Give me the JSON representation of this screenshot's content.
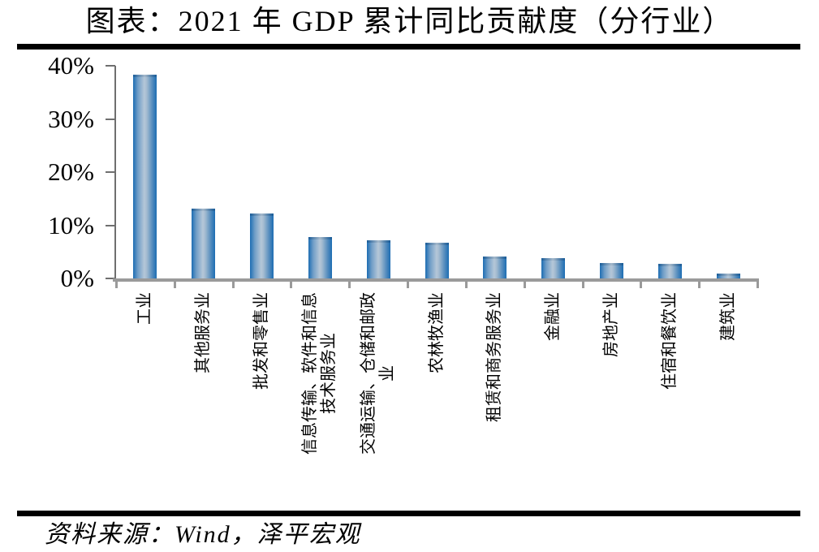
{
  "title": "图表：2021 年 GDP 累计同比贡献度（分行业）",
  "source": "资料来源：Wind，泽平宏观",
  "colors": {
    "bar_edge": "#1d6db3",
    "bar_center": "#b5c7d8",
    "axis_gray": "#9a9a9a",
    "tick_dark": "#6f6f6f",
    "rule_black": "#000000"
  },
  "chart_data": {
    "type": "bar",
    "title": "图表：2021 年 GDP 累计同比贡献度（分行业）",
    "categories": [
      "工业",
      "其他服务业",
      "批发和零售业",
      "信息传输、软件和信息技术服务业",
      "交通运输、仓储和邮政业",
      "农林牧渔业",
      "租赁和商务服务业",
      "金融业",
      "房地产业",
      "住宿和餐饮业",
      "建筑业"
    ],
    "category_display_lines": [
      [
        "工业"
      ],
      [
        "其他服务业"
      ],
      [
        "批发和零售业"
      ],
      [
        "信息传输、软件和信息",
        "技术服务业"
      ],
      [
        "交通运输、仓储和邮政",
        "业"
      ],
      [
        "农林牧渔业"
      ],
      [
        "租赁和商务服务业"
      ],
      [
        "金融业"
      ],
      [
        "房地产业"
      ],
      [
        "住宿和餐饮业"
      ],
      [
        "建筑业"
      ]
    ],
    "values": [
      38.3,
      13.2,
      12.2,
      7.8,
      7.1,
      6.7,
      4.1,
      3.8,
      2.9,
      2.8,
      0.9
    ],
    "unit": "%",
    "xlabel": "",
    "ylabel": "",
    "ylim": [
      0,
      40
    ],
    "ytick_labels": [
      "40%",
      "30%",
      "20%",
      "10%",
      "0%"
    ],
    "ytick_values": [
      40,
      30,
      20,
      10,
      0
    ],
    "grid": false,
    "legend": false,
    "bar_label_rotation_deg": 90
  }
}
